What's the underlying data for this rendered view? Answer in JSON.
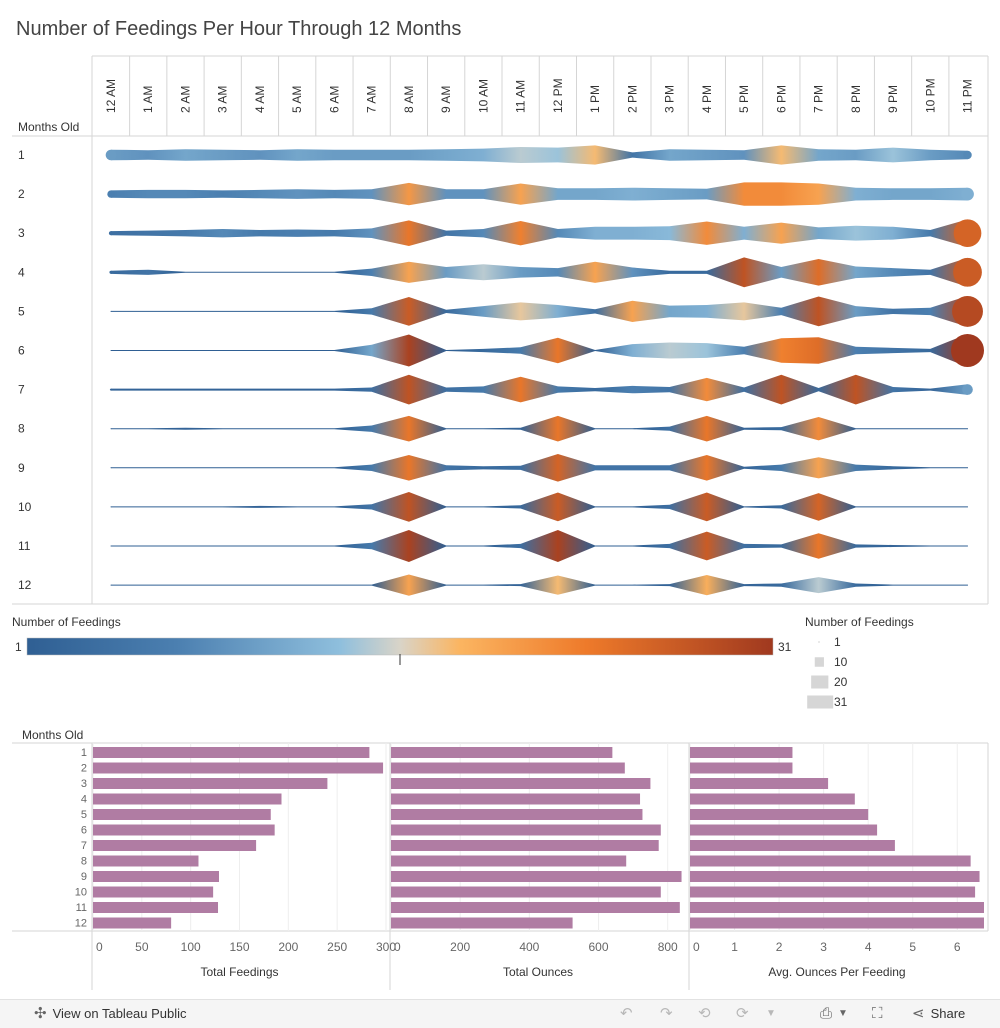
{
  "title": "Number of Feedings Per Hour Through 12 Months",
  "chart_data": [
    {
      "type": "heatmap",
      "title": "Number of Feedings Per Hour Through 12 Months",
      "row_header": "Months Old",
      "hours": [
        "12 AM",
        "1 AM",
        "2 AM",
        "3 AM",
        "4 AM",
        "5 AM",
        "6 AM",
        "7 AM",
        "8 AM",
        "9 AM",
        "10 AM",
        "11 AM",
        "12 PM",
        "1 PM",
        "2 PM",
        "3 PM",
        "4 PM",
        "5 PM",
        "6 PM",
        "7 PM",
        "8 PM",
        "9 PM",
        "10 PM",
        "11 PM"
      ],
      "months": [
        "1",
        "2",
        "3",
        "4",
        "5",
        "6",
        "7",
        "8",
        "9",
        "10",
        "11",
        "12"
      ],
      "values": [
        [
          10,
          9,
          11,
          10,
          9,
          11,
          10,
          10,
          10,
          11,
          12,
          15,
          14,
          18,
          5,
          11,
          10,
          9,
          18,
          11,
          10,
          14,
          10,
          8
        ],
        [
          7,
          8,
          8,
          7,
          8,
          9,
          8,
          9,
          21,
          9,
          9,
          20,
          11,
          11,
          12,
          11,
          10,
          22,
          22,
          20,
          12,
          11,
          11,
          12
        ],
        [
          4,
          5,
          6,
          8,
          6,
          7,
          6,
          9,
          24,
          5,
          8,
          23,
          8,
          12,
          12,
          13,
          22,
          12,
          20,
          11,
          14,
          12,
          6,
          26
        ],
        [
          3,
          5,
          1,
          1,
          1,
          1,
          1,
          7,
          20,
          10,
          15,
          10,
          8,
          20,
          9,
          3,
          3,
          28,
          10,
          25,
          11,
          8,
          5,
          27
        ],
        [
          1,
          1,
          1,
          1,
          1,
          1,
          1,
          6,
          27,
          3,
          10,
          17,
          12,
          4,
          20,
          11,
          12,
          17,
          7,
          28,
          10,
          5,
          7,
          29
        ],
        [
          1,
          1,
          1,
          1,
          1,
          1,
          1,
          11,
          30,
          1,
          3,
          6,
          24,
          1,
          12,
          15,
          14,
          7,
          23,
          25,
          7,
          5,
          3,
          31
        ],
        [
          2,
          2,
          2,
          2,
          2,
          2,
          2,
          4,
          28,
          4,
          6,
          24,
          6,
          3,
          7,
          5,
          22,
          4,
          28,
          3,
          28,
          5,
          2,
          10
        ],
        [
          1,
          1,
          2,
          1,
          1,
          1,
          1,
          6,
          24,
          1,
          1,
          2,
          24,
          1,
          1,
          4,
          24,
          2,
          3,
          22,
          1,
          1,
          1,
          1
        ],
        [
          1,
          1,
          1,
          1,
          1,
          1,
          1,
          6,
          24,
          5,
          3,
          4,
          26,
          5,
          5,
          5,
          24,
          2,
          6,
          20,
          6,
          3,
          1,
          1
        ],
        [
          1,
          1,
          1,
          1,
          2,
          1,
          1,
          5,
          28,
          1,
          1,
          3,
          27,
          1,
          1,
          4,
          27,
          1,
          3,
          26,
          1,
          1,
          1,
          1
        ],
        [
          1,
          1,
          1,
          1,
          1,
          1,
          1,
          6,
          30,
          1,
          1,
          4,
          30,
          1,
          1,
          4,
          27,
          4,
          3,
          24,
          3,
          2,
          1,
          1
        ],
        [
          1,
          1,
          1,
          1,
          1,
          1,
          1,
          1,
          20,
          1,
          1,
          2,
          18,
          1,
          1,
          2,
          19,
          2,
          3,
          15,
          3,
          1,
          1,
          1
        ]
      ],
      "color_legend": {
        "title": "Number of Feedings",
        "min": "1",
        "max": "31"
      },
      "size_legend": {
        "title": "Number of Feedings",
        "entries": [
          "1",
          "10",
          "20",
          "31"
        ]
      }
    },
    {
      "type": "bar",
      "row_header": "Months Old",
      "categories": [
        "1",
        "2",
        "3",
        "4",
        "5",
        "6",
        "7",
        "8",
        "9",
        "10",
        "11",
        "12"
      ],
      "panels": [
        {
          "xlabel": "Total Feedings",
          "values": [
            283,
            297,
            240,
            193,
            182,
            186,
            167,
            108,
            129,
            123,
            128,
            80
          ],
          "xlim": [
            0,
            300
          ],
          "ticks": [
            "0",
            "50",
            "100",
            "150",
            "200",
            "250",
            "300"
          ]
        },
        {
          "xlabel": "Total Ounces",
          "values": [
            640,
            676,
            750,
            720,
            727,
            780,
            774,
            680,
            840,
            780,
            835,
            525
          ],
          "xlim": [
            0,
            850
          ],
          "ticks": [
            "0",
            "200",
            "400",
            "600",
            "800"
          ]
        },
        {
          "xlabel": "Avg. Ounces Per Feeding",
          "values": [
            2.3,
            2.3,
            3.1,
            3.7,
            4.0,
            4.2,
            4.6,
            6.3,
            6.5,
            6.4,
            6.6,
            6.6
          ],
          "xlim": [
            0,
            6.6
          ],
          "ticks": [
            "0",
            "1",
            "2",
            "3",
            "4",
            "5",
            "6"
          ]
        }
      ],
      "bar_color": "#b07ca3"
    }
  ],
  "toolbar": {
    "view_label": "View on Tableau Public",
    "share_label": "Share",
    "icons": [
      "tableau-logo-icon",
      "undo-icon",
      "redo-icon",
      "revert-icon",
      "forward-icon",
      "dropdown-icon",
      "download-icon",
      "fullscreen-icon",
      "share-icon"
    ]
  }
}
